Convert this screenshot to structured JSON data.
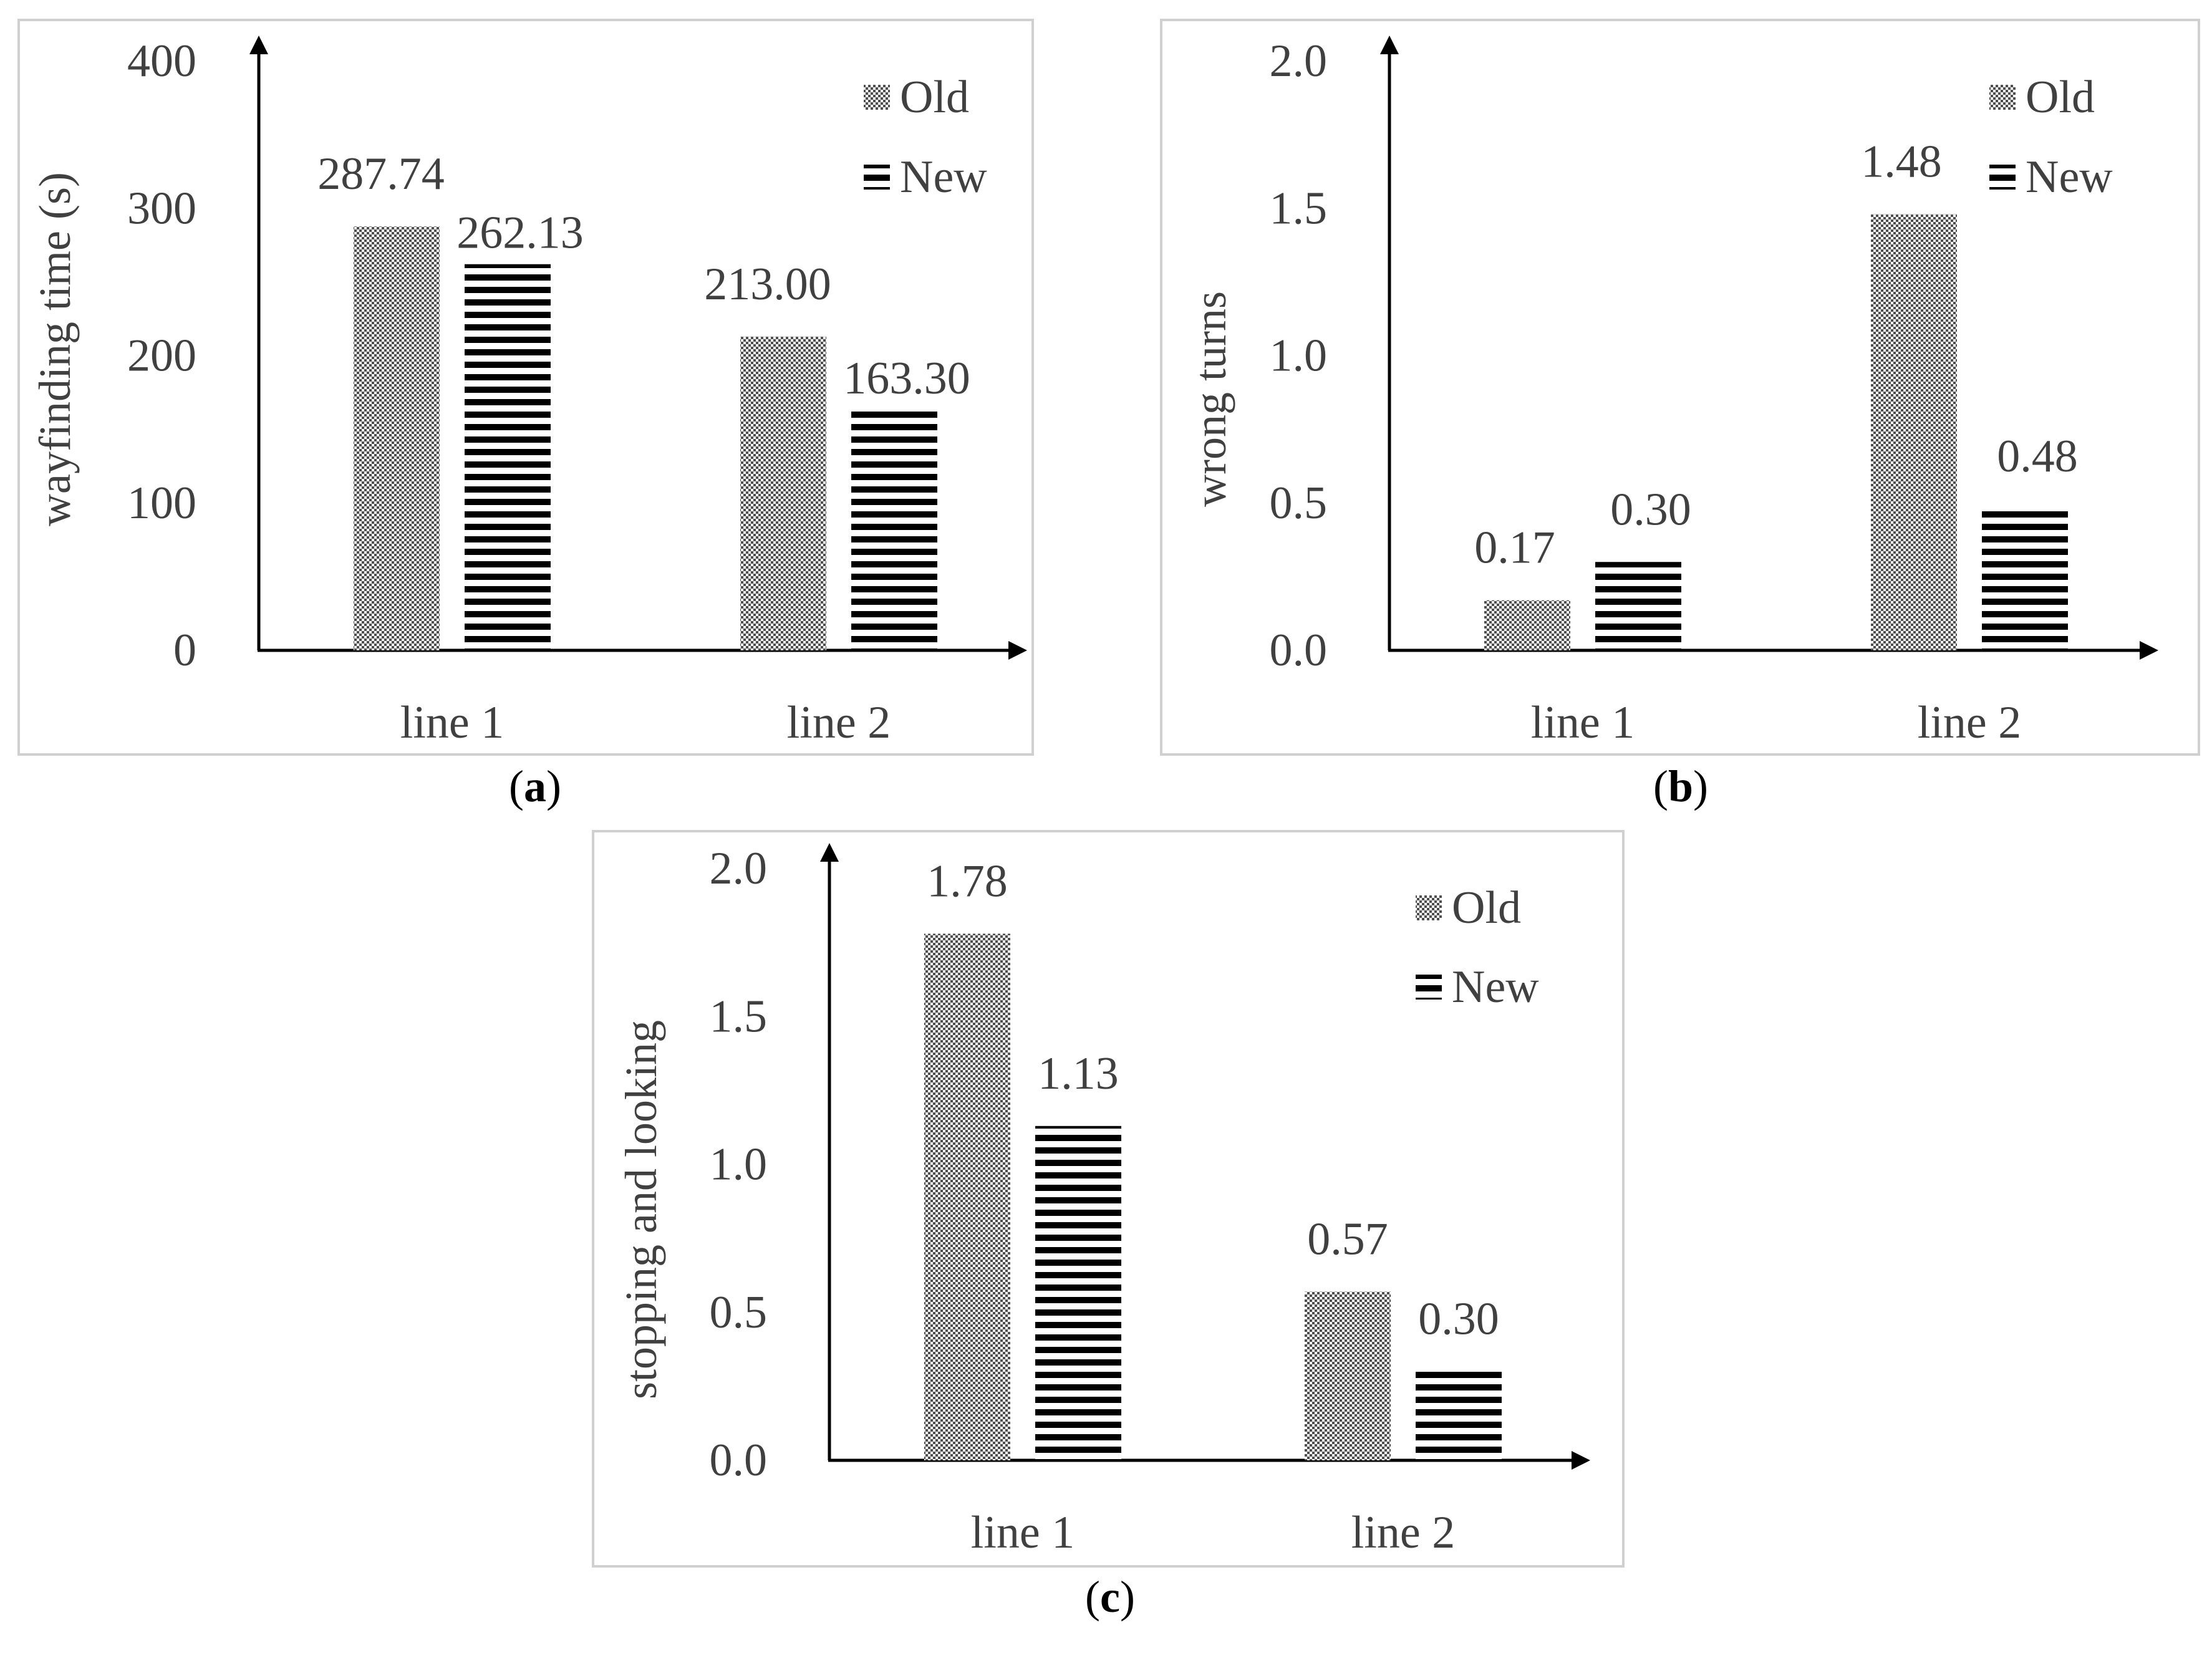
{
  "colors": {
    "text": "#404040",
    "axis": "#000000",
    "panel_border": "#d0d0d0",
    "old_pattern": "checkerboard-gray",
    "new_pattern": "horizontal-black-stripes"
  },
  "chart_data": [
    {
      "type": "bar",
      "panel": "a",
      "caption": {
        "open": "(",
        "letter": "a",
        "close": ")"
      },
      "categories": [
        "line 1",
        "line 2"
      ],
      "series": [
        {
          "name": "Old",
          "values": [
            287.74,
            213.0
          ],
          "labels": [
            "287.74",
            "213.00"
          ]
        },
        {
          "name": "New",
          "values": [
            262.13,
            163.3
          ],
          "labels": [
            "262.13",
            "163.30"
          ]
        }
      ],
      "ylabel": "wayfinding time (s)",
      "ylim": [
        0,
        400
      ],
      "yticks": [
        0,
        100,
        200,
        300,
        400
      ],
      "ytick_labels": [
        "0",
        "100",
        "200",
        "300",
        "400"
      ],
      "grid": false,
      "legend": "top-right"
    },
    {
      "type": "bar",
      "panel": "b",
      "caption": {
        "open": "(",
        "letter": "b",
        "close": ")"
      },
      "categories": [
        "line 1",
        "line 2"
      ],
      "series": [
        {
          "name": "Old",
          "values": [
            0.17,
            1.48
          ],
          "labels": [
            "0.17",
            "1.48"
          ]
        },
        {
          "name": "New",
          "values": [
            0.3,
            0.48
          ],
          "labels": [
            "0.30",
            "0.48"
          ]
        }
      ],
      "ylabel": "wrong turns",
      "ylim": [
        0,
        2.0
      ],
      "yticks": [
        0,
        0.5,
        1.0,
        1.5,
        2.0
      ],
      "ytick_labels": [
        "0.0",
        "0.5",
        "1.0",
        "1.5",
        "2.0"
      ],
      "grid": false,
      "legend": "top-right"
    },
    {
      "type": "bar",
      "panel": "c",
      "caption": {
        "open": "(",
        "letter": "c",
        "close": ")"
      },
      "categories": [
        "line 1",
        "line 2"
      ],
      "series": [
        {
          "name": "Old",
          "values": [
            1.78,
            0.57
          ],
          "labels": [
            "1.78",
            "0.57"
          ]
        },
        {
          "name": "New",
          "values": [
            1.13,
            0.3
          ],
          "labels": [
            "1.13",
            "0.30"
          ]
        }
      ],
      "ylabel": "stopping and looking",
      "ylim": [
        0,
        2.0
      ],
      "yticks": [
        0,
        0.5,
        1.0,
        1.5,
        2.0
      ],
      "ytick_labels": [
        "0.0",
        "0.5",
        "1.0",
        "1.5",
        "2.0"
      ],
      "grid": false,
      "legend": "top-right"
    }
  ]
}
